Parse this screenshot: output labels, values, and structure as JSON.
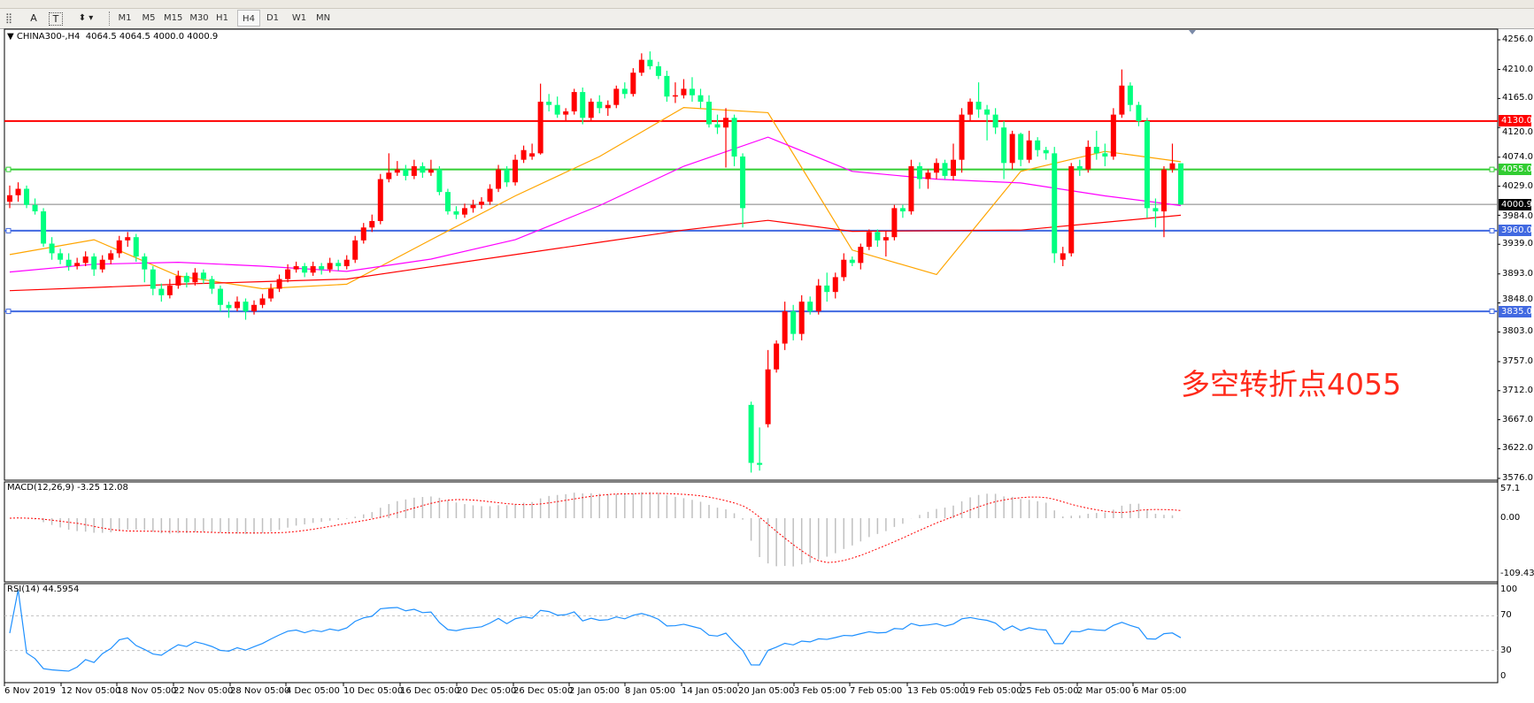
{
  "toolbar": {
    "tools": [
      {
        "name": "grid-tool",
        "glyph": "⣿"
      },
      {
        "name": "text-tool",
        "glyph": "A"
      },
      {
        "name": "text-label-tool",
        "glyph": "T"
      },
      {
        "name": "arrows-tool",
        "glyph": "⬍ ▾"
      }
    ],
    "timeframes": [
      "M1",
      "M5",
      "M15",
      "M30",
      "H1",
      "H4",
      "D1",
      "W1",
      "MN"
    ],
    "selected_timeframe": "H4"
  },
  "chart": {
    "title": "CHINA300-,H4  4064.5 4064.5 4000.0 4000.9",
    "symbol": "CHINA300-",
    "timeframe": "H4",
    "ohlc": {
      "open": 4064.5,
      "high": 4064.5,
      "low": 4000.0,
      "close": 4000.9
    },
    "annotation": "多空转折点4055",
    "colors": {
      "up": "#ff0000",
      "down": "#00ff7f",
      "ma_fast": "#ffa500",
      "ma_mid": "#ff00ff",
      "ma_slow": "#ff0000",
      "macd_hist": "#c0c0c0",
      "macd_signal": "#ff0000",
      "rsi": "#1e90ff"
    },
    "price_axis": [
      "4256.0",
      "4210.0",
      "4165.0",
      "4120.0",
      "4074.0",
      "4029.0",
      "3984.0",
      "3939.0",
      "3893.0",
      "3848.0",
      "3803.0",
      "3757.0",
      "3712.0",
      "3667.0",
      "3622.0",
      "3576.0"
    ],
    "levels": [
      {
        "label": "4130.0",
        "value": 4130,
        "color": "#ff0000"
      },
      {
        "label": "4055.0",
        "value": 4055,
        "color": "#32cd32"
      },
      {
        "label": "4000.9",
        "value": 4000.9,
        "color": "#808080",
        "label_bg": "#000000"
      },
      {
        "label": "3960.0",
        "value": 3960,
        "color": "#4169e1"
      },
      {
        "label": "3835.0",
        "value": 3835,
        "color": "#4169e1"
      }
    ],
    "time_axis": [
      "6 Nov 2019",
      "12 Nov 05:00",
      "18 Nov 05:00",
      "22 Nov 05:00",
      "28 Nov 05:00",
      "4 Dec 05:00",
      "10 Dec 05:00",
      "16 Dec 05:00",
      "20 Dec 05:00",
      "26 Dec 05:00",
      "2 Jan 05:00",
      "8 Jan 05:00",
      "14 Jan 05:00",
      "20 Jan 05:00",
      "3 Feb 05:00",
      "7 Feb 05:00",
      "13 Feb 05:00",
      "19 Feb 05:00",
      "25 Feb 05:00",
      "2 Mar 05:00",
      "6 Mar 05:00"
    ]
  },
  "macd": {
    "label": "MACD(12,26,9) -3.25 12.08",
    "axis": [
      "57.1",
      "0.00",
      "-109.43"
    ]
  },
  "rsi": {
    "label": "RSI(14) 44.5954",
    "axis": [
      "100",
      "70",
      "30",
      "0"
    ],
    "levels": [
      70,
      30
    ]
  },
  "chart_data": {
    "type": "candlestick",
    "ylim": [
      3576,
      4256
    ],
    "candles_ohlc": [
      [
        4005,
        4030,
        3995,
        4015
      ],
      [
        4015,
        4035,
        4005,
        4025
      ],
      [
        4025,
        4030,
        3995,
        4000
      ],
      [
        4000,
        4010,
        3985,
        3990
      ],
      [
        3990,
        3995,
        3935,
        3940
      ],
      [
        3940,
        3950,
        3915,
        3925
      ],
      [
        3925,
        3932,
        3908,
        3915
      ],
      [
        3915,
        3925,
        3898,
        3905
      ],
      [
        3905,
        3918,
        3900,
        3910
      ],
      [
        3910,
        3928,
        3905,
        3920
      ],
      [
        3920,
        3925,
        3890,
        3900
      ],
      [
        3900,
        3922,
        3895,
        3915
      ],
      [
        3915,
        3930,
        3908,
        3925
      ],
      [
        3925,
        3952,
        3918,
        3945
      ],
      [
        3945,
        3958,
        3935,
        3950
      ],
      [
        3950,
        3955,
        3912,
        3920
      ],
      [
        3920,
        3925,
        3880,
        3900
      ],
      [
        3900,
        3905,
        3860,
        3870
      ],
      [
        3870,
        3878,
        3850,
        3860
      ],
      [
        3860,
        3885,
        3855,
        3875
      ],
      [
        3875,
        3898,
        3870,
        3890
      ],
      [
        3890,
        3895,
        3872,
        3880
      ],
      [
        3880,
        3902,
        3875,
        3895
      ],
      [
        3895,
        3900,
        3878,
        3885
      ],
      [
        3885,
        3890,
        3862,
        3870
      ],
      [
        3870,
        3875,
        3835,
        3845
      ],
      [
        3845,
        3850,
        3825,
        3840
      ],
      [
        3840,
        3858,
        3835,
        3850
      ],
      [
        3850,
        3855,
        3822,
        3835
      ],
      [
        3835,
        3852,
        3830,
        3845
      ],
      [
        3845,
        3862,
        3840,
        3855
      ],
      [
        3855,
        3878,
        3850,
        3870
      ],
      [
        3870,
        3892,
        3865,
        3885
      ],
      [
        3885,
        3908,
        3880,
        3900
      ],
      [
        3900,
        3912,
        3895,
        3905
      ],
      [
        3905,
        3910,
        3888,
        3895
      ],
      [
        3895,
        3912,
        3890,
        3905
      ],
      [
        3905,
        3910,
        3892,
        3900
      ],
      [
        3900,
        3918,
        3895,
        3910
      ],
      [
        3910,
        3915,
        3898,
        3905
      ],
      [
        3905,
        3922,
        3900,
        3915
      ],
      [
        3915,
        3952,
        3910,
        3945
      ],
      [
        3945,
        3972,
        3940,
        3965
      ],
      [
        3965,
        3985,
        3958,
        3975
      ],
      [
        3975,
        4048,
        3970,
        4040
      ],
      [
        4040,
        4080,
        4035,
        4050
      ],
      [
        4050,
        4068,
        4045,
        4055
      ],
      [
        4055,
        4062,
        4038,
        4045
      ],
      [
        4045,
        4070,
        4040,
        4060
      ],
      [
        4060,
        4066,
        4042,
        4050
      ],
      [
        4050,
        4070,
        4045,
        4055
      ],
      [
        4055,
        4060,
        4015,
        4020
      ],
      [
        4020,
        4025,
        3985,
        3990
      ],
      [
        3990,
        3998,
        3978,
        3985
      ],
      [
        3985,
        4002,
        3980,
        3995
      ],
      [
        3995,
        4008,
        3988,
        4000
      ],
      [
        4000,
        4012,
        3994,
        4005
      ],
      [
        4005,
        4032,
        4000,
        4025
      ],
      [
        4025,
        4062,
        4020,
        4055
      ],
      [
        4055,
        4060,
        4028,
        4035
      ],
      [
        4035,
        4078,
        4030,
        4070
      ],
      [
        4070,
        4092,
        4065,
        4085
      ],
      [
        4075,
        4095,
        4070,
        4080
      ],
      [
        4080,
        4188,
        4078,
        4160
      ],
      [
        4160,
        4172,
        4145,
        4155
      ],
      [
        4155,
        4168,
        4135,
        4140
      ],
      [
        4140,
        4150,
        4130,
        4145
      ],
      [
        4145,
        4180,
        4140,
        4175
      ],
      [
        4175,
        4182,
        4125,
        4135
      ],
      [
        4135,
        4165,
        4130,
        4160
      ],
      [
        4160,
        4170,
        4142,
        4150
      ],
      [
        4150,
        4162,
        4138,
        4155
      ],
      [
        4155,
        4185,
        4150,
        4180
      ],
      [
        4180,
        4190,
        4165,
        4172
      ],
      [
        4172,
        4212,
        4168,
        4205
      ],
      [
        4205,
        4235,
        4200,
        4225
      ],
      [
        4225,
        4238,
        4210,
        4215
      ],
      [
        4215,
        4222,
        4195,
        4200
      ],
      [
        4200,
        4208,
        4160,
        4168
      ],
      [
        4168,
        4190,
        4158,
        4170
      ],
      [
        4170,
        4195,
        4165,
        4180
      ],
      [
        4180,
        4198,
        4160,
        4170
      ],
      [
        4170,
        4180,
        4150,
        4160
      ],
      [
        4160,
        4170,
        4120,
        4125
      ],
      [
        4125,
        4140,
        4110,
        4120
      ],
      [
        4120,
        4150,
        4058,
        4135
      ],
      [
        4135,
        4140,
        4060,
        4075
      ],
      [
        4075,
        4080,
        3965,
        3995
      ],
      [
        3690,
        3695,
        3585,
        3600
      ],
      [
        3600,
        3655,
        3588,
        3597
      ],
      [
        3660,
        3775,
        3655,
        3745
      ],
      [
        3745,
        3790,
        3740,
        3785
      ],
      [
        3785,
        3850,
        3775,
        3835
      ],
      [
        3835,
        3845,
        3790,
        3800
      ],
      [
        3800,
        3860,
        3790,
        3850
      ],
      [
        3850,
        3858,
        3830,
        3835
      ],
      [
        3835,
        3885,
        3830,
        3875
      ],
      [
        3875,
        3895,
        3850,
        3865
      ],
      [
        3865,
        3895,
        3855,
        3888
      ],
      [
        3888,
        3925,
        3882,
        3915
      ],
      [
        3915,
        3920,
        3905,
        3910
      ],
      [
        3910,
        3940,
        3900,
        3935
      ],
      [
        3935,
        3962,
        3930,
        3958
      ],
      [
        3958,
        3962,
        3935,
        3945
      ],
      [
        3945,
        3960,
        3920,
        3950
      ],
      [
        3950,
        4000,
        3945,
        3995
      ],
      [
        3995,
        4000,
        3980,
        3990
      ],
      [
        3990,
        4070,
        3985,
        4060
      ],
      [
        4060,
        4066,
        4025,
        4040
      ],
      [
        4040,
        4055,
        4025,
        4050
      ],
      [
        4050,
        4072,
        4040,
        4065
      ],
      [
        4065,
        4070,
        4040,
        4045
      ],
      [
        4045,
        4095,
        4038,
        4070
      ],
      [
        4070,
        4150,
        4050,
        4140
      ],
      [
        4140,
        4165,
        4130,
        4160
      ],
      [
        4160,
        4190,
        4135,
        4148
      ],
      [
        4148,
        4155,
        4100,
        4140
      ],
      [
        4140,
        4150,
        4110,
        4120
      ],
      [
        4120,
        4130,
        4040,
        4065
      ],
      [
        4065,
        4115,
        4055,
        4110
      ],
      [
        4110,
        4112,
        4060,
        4070
      ],
      [
        4070,
        4115,
        4065,
        4100
      ],
      [
        4100,
        4105,
        4075,
        4085
      ],
      [
        4085,
        4090,
        4070,
        4080
      ],
      [
        4080,
        4090,
        3910,
        3925
      ],
      [
        3915,
        3935,
        3905,
        3925
      ],
      [
        3925,
        4065,
        3920,
        4060
      ],
      [
        4060,
        4070,
        4045,
        4055
      ],
      [
        4055,
        4100,
        4050,
        4090
      ],
      [
        4090,
        4115,
        4070,
        4080
      ],
      [
        4080,
        4095,
        4060,
        4075
      ],
      [
        4075,
        4150,
        4070,
        4140
      ],
      [
        4140,
        4210,
        4135,
        4185
      ],
      [
        4185,
        4190,
        4145,
        4155
      ],
      [
        4155,
        4160,
        4122,
        4130
      ],
      [
        4130,
        4135,
        3980,
        3995
      ],
      [
        3995,
        4010,
        3965,
        3990
      ],
      [
        3990,
        4060,
        3950,
        4055
      ],
      [
        4055,
        4095,
        4050,
        4064.5
      ],
      [
        4064.5,
        4064.5,
        4000,
        4000.9
      ]
    ],
    "moving_averages_sampled_every_10_bars": {
      "orange": [
        3923,
        3946,
        3890,
        3870,
        3877,
        3946,
        4014,
        4075,
        4151,
        4143,
        3930,
        3892,
        4052,
        4083,
        4067
      ],
      "magenta": [
        3896,
        3908,
        3911,
        3905,
        3897,
        3916,
        3946,
        3999,
        4060,
        4105,
        4052,
        4040,
        4034,
        4014,
        3999
      ],
      "red": [
        3867,
        3872,
        3877,
        3881,
        3885,
        3904,
        3923,
        3942,
        3961,
        3976,
        3959,
        3960,
        3961,
        3973,
        3984
      ]
    }
  }
}
